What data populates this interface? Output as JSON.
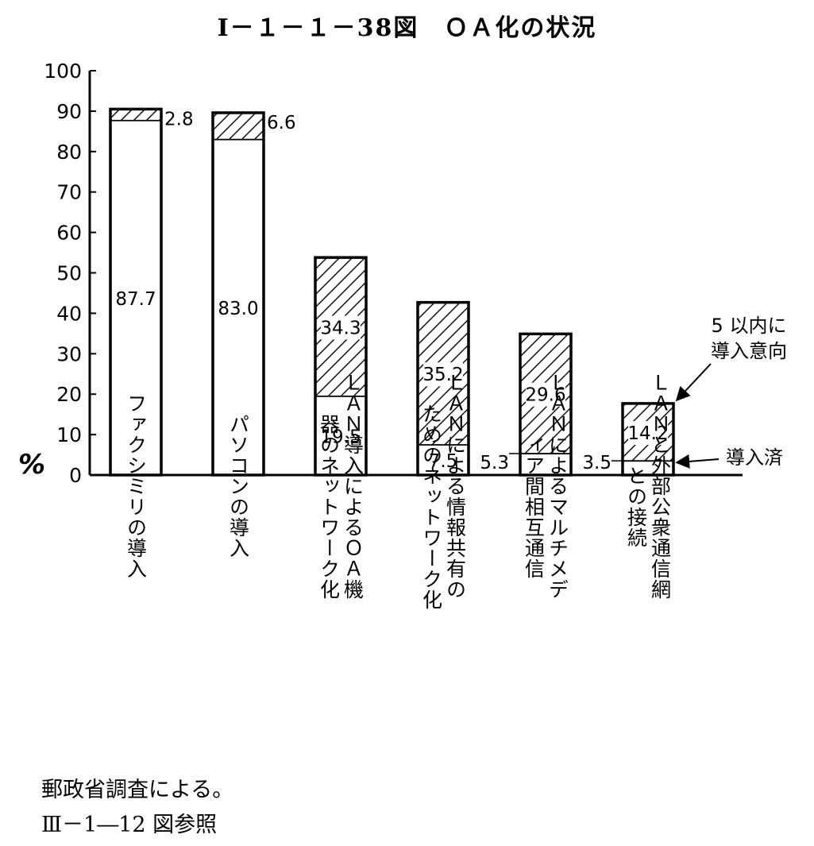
{
  "title": "Ⅰ－１－１－38図　ＯＡ化の状況",
  "notes": {
    "source": "郵政省調査による。",
    "reference": "Ⅲ－1―12 図参照"
  },
  "chart_data": {
    "type": "bar",
    "stacked": true,
    "ylabel": "%",
    "ylim": [
      0,
      100
    ],
    "yticks": [
      0,
      10,
      20,
      30,
      40,
      50,
      60,
      70,
      80,
      90,
      100
    ],
    "grid": false,
    "categories": [
      "ファクシミリの導入",
      "パソコンの導入",
      "ＬＡＮ導入によるＯＡ機器のネットワーク化",
      "ＬＡＮによる情報共有のためのネットワーク化",
      "ＬＡＮによるマルチメディア間相互通信",
      "ＬＡＮと外部公衆通信網との接続"
    ],
    "category_lines": [
      [
        "ファクシミリの導入"
      ],
      [
        "パソコンの導入"
      ],
      [
        "ＬＡＮ導入によるＯＡ機",
        "器のネットワーク化"
      ],
      [
        "ＬＡＮによる情報共有の",
        "ためのネットワーク化"
      ],
      [
        "ＬＡＮによるマルチメデ",
        "ィア間相互通信"
      ],
      [
        "ＬＡＮと外部公衆通信網",
        "との接続"
      ]
    ],
    "series": [
      {
        "name": "導入済",
        "values": [
          87.7,
          83.0,
          19.5,
          7.5,
          5.3,
          3.5
        ],
        "label_text": [
          "87.7",
          "83.0",
          "19.5",
          "7.5",
          "5.3",
          "3.5"
        ],
        "fill": "#ffffff"
      },
      {
        "name": "5 以内に導入意向",
        "values": [
          2.8,
          6.6,
          34.3,
          35.2,
          29.6,
          14.2
        ],
        "label_text": [
          "2.8",
          "6.6",
          "34.3",
          "35.2",
          "29.6",
          "14.2"
        ],
        "fill": "hatch"
      }
    ],
    "annotations": {
      "intent_line1": "5 以内に",
      "intent_line2": "導入意向",
      "installed": "導入済"
    }
  }
}
